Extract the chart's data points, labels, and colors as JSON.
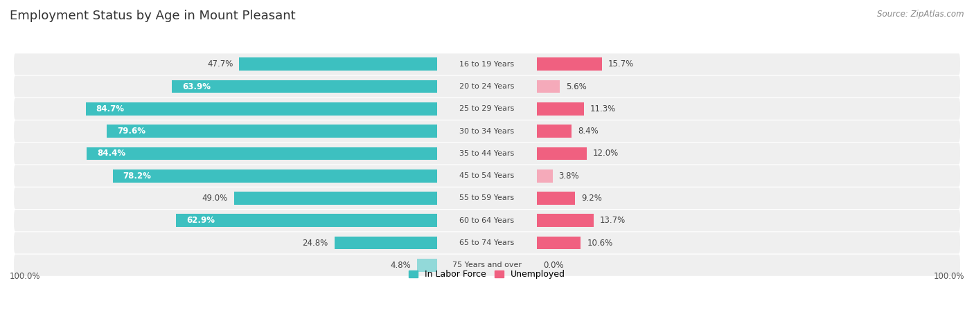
{
  "title": "Employment Status by Age in Mount Pleasant",
  "source": "Source: ZipAtlas.com",
  "categories": [
    "16 to 19 Years",
    "20 to 24 Years",
    "25 to 29 Years",
    "30 to 34 Years",
    "35 to 44 Years",
    "45 to 54 Years",
    "55 to 59 Years",
    "60 to 64 Years",
    "65 to 74 Years",
    "75 Years and over"
  ],
  "labor_force": [
    47.7,
    63.9,
    84.7,
    79.6,
    84.4,
    78.2,
    49.0,
    62.9,
    24.8,
    4.8
  ],
  "unemployed": [
    15.7,
    5.6,
    11.3,
    8.4,
    12.0,
    3.8,
    9.2,
    13.7,
    10.6,
    0.0
  ],
  "lf_colors": [
    "#3dc0c0",
    "#3dc0c0",
    "#3dc0c0",
    "#3dc0c0",
    "#3dc0c0",
    "#3dc0c0",
    "#3dc0c0",
    "#3dc0c0",
    "#3dc0c0",
    "#92d9d9"
  ],
  "un_colors": [
    "#f06080",
    "#f5aaba",
    "#f06080",
    "#f06080",
    "#f06080",
    "#f5aaba",
    "#f06080",
    "#f06080",
    "#f06080",
    "#f5aaba"
  ],
  "row_bg": "#efefef",
  "row_bg_alt": "#e8e8e8",
  "panel_bg": "#f7f7f7",
  "max_value": 100.0,
  "legend_lf": "In Labor Force",
  "legend_un": "Unemployed",
  "lf_legend_color": "#3dc0c0",
  "un_legend_color": "#f06080",
  "axis_label": "100.0%",
  "title_fontsize": 13,
  "label_fontsize": 8.5,
  "cat_fontsize": 8.0
}
